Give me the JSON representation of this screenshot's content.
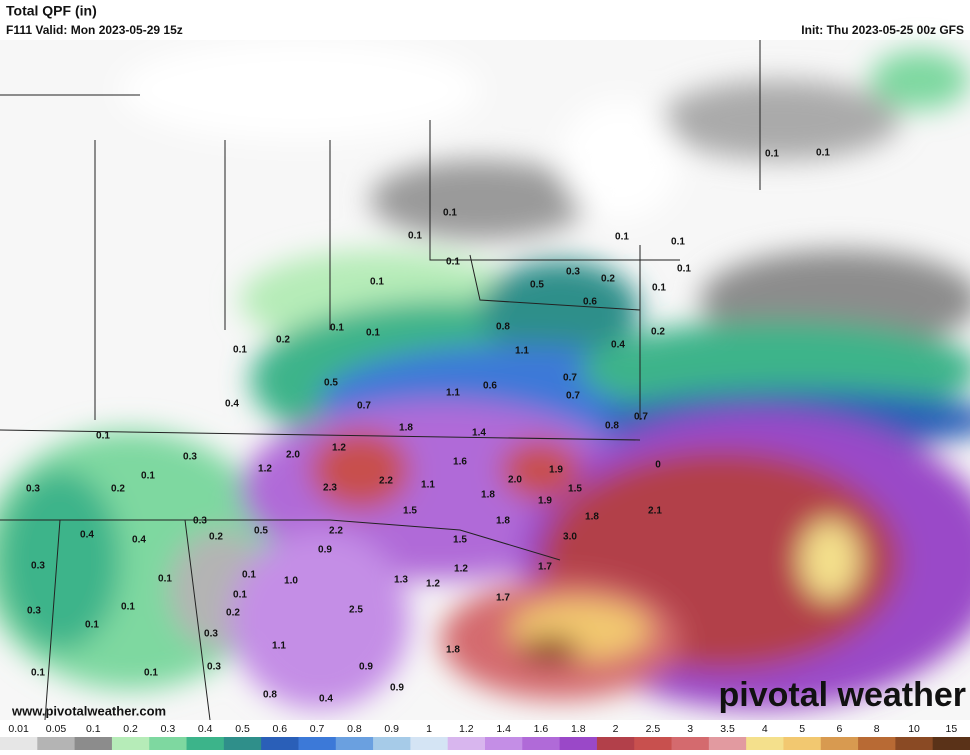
{
  "header": {
    "title": "Total QPF (in)",
    "valid": "F111 Valid: Mon 2023-05-29 15z",
    "init": "Init: Thu 2023-05-25 00z GFS"
  },
  "map_labels": [
    "0.1",
    "0.1",
    "0.1",
    "0.1",
    "0.1",
    "0.1",
    "0.1",
    "0.2",
    "0.5",
    "0.4",
    "0.7",
    "1.1",
    "0.6",
    "0.8",
    "1.1",
    "0.5",
    "0.3",
    "0.2",
    "0.6",
    "0.7",
    "0.7",
    "0.1",
    "0.1",
    "0.1",
    "0.1",
    "0.2",
    "0.4",
    "0.8",
    "0.7",
    "1.8",
    "1.4",
    "1.6",
    "1.9",
    "2.0",
    "1.5",
    "1.9",
    "1.8",
    "1.8",
    "1.8",
    "1.1",
    "1.5",
    "2.2",
    "2.3",
    "1.2",
    "2.0",
    "1.2",
    "0.3",
    "0.1",
    "0.1",
    "0.2",
    "0.3",
    "0.3",
    "0.4",
    "0.4",
    "0.2",
    "0.5",
    "2.2",
    "0.9",
    "3.0",
    "1.5",
    "1.2",
    "1.7",
    "1.3",
    "1.2",
    "0.1",
    "1.0",
    "0.1",
    "0.3",
    "0.1",
    "0.2",
    "2.5",
    "1.7",
    "0.3",
    "0.1",
    "0.1",
    "0.3",
    "1.1",
    "0.3",
    "0.9",
    "1.8",
    "0.1",
    "0.1",
    "0.8",
    "0.4",
    "0.9",
    "0.1",
    "0.1",
    "0",
    "2.1"
  ],
  "website": "www.pivotalweather.com",
  "logo": "pivotal weather",
  "colorbar": {
    "labels": [
      0.01,
      0.05,
      0.1,
      0.2,
      0.3,
      0.4,
      0.5,
      0.6,
      0.7,
      0.8,
      0.9,
      1,
      1.2,
      1.4,
      1.6,
      1.8,
      2,
      2.5,
      3,
      3.5,
      4,
      5,
      6,
      8,
      10,
      15
    ],
    "colors": [
      "#e6e6e6",
      "#b4b4b4",
      "#8c8c8c",
      "#b6ecb8",
      "#7ed8a0",
      "#3cb48a",
      "#2f8f8a",
      "#2a5fb8",
      "#3c79d8",
      "#6aa0e0",
      "#a6cbe8",
      "#d4e4f4",
      "#d8b6ee",
      "#c48ee6",
      "#b06ad8",
      "#9a48c8",
      "#b2404a",
      "#c8504e",
      "#d46a6e",
      "#e29aa0",
      "#f4e08c",
      "#f2c870",
      "#d89a50",
      "#b86a34",
      "#8a4a24",
      "#5a3218"
    ]
  }
}
